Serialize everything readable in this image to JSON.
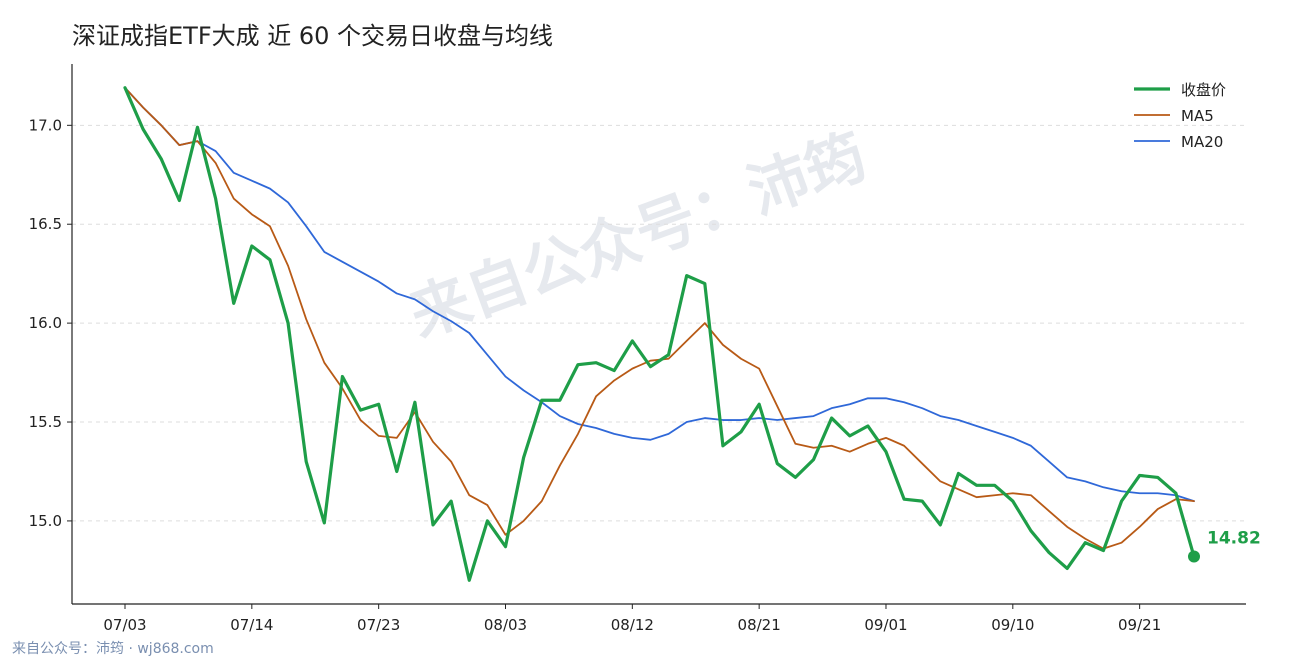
{
  "title": "深证成指ETF大成 近 60 个交易日收盘与均线",
  "watermark": "来自公众号：沛筠",
  "footer": "来自公众号：沛筠 · wj868.com",
  "end_label": "14.82",
  "colors": {
    "close": "#1e9e48",
    "ma5": "#b85a16",
    "ma20": "#2f68d8",
    "axis": "#222222",
    "grid": "#dddddd"
  },
  "chart_data": {
    "type": "line",
    "title": "深证成指ETF大成 近 60 个交易日收盘与均线",
    "xlabel": "",
    "ylabel": "",
    "ylim": [
      14.58,
      17.31
    ],
    "y_ticks": [
      15.0,
      15.5,
      16.0,
      16.5,
      17.0
    ],
    "x_tick_labels": [
      "07/03",
      "07/14",
      "07/23",
      "08/03",
      "08/12",
      "08/21",
      "09/01",
      "09/10",
      "09/21"
    ],
    "x_tick_positions": [
      0,
      7,
      14,
      21,
      28,
      35,
      42,
      49,
      56
    ],
    "grid": "horizontal-dashed",
    "legend_position": "top-right",
    "series": [
      {
        "name": "收盘价",
        "values": [
          17.19,
          16.98,
          16.83,
          16.62,
          16.99,
          16.63,
          16.1,
          16.39,
          16.32,
          16.0,
          15.3,
          14.99,
          15.73,
          15.56,
          15.59,
          15.25,
          15.6,
          14.98,
          15.1,
          14.7,
          15.0,
          14.87,
          15.32,
          15.61,
          15.61,
          15.79,
          15.8,
          15.76,
          15.91,
          15.78,
          15.84,
          16.24,
          16.2,
          15.38,
          15.45,
          15.59,
          15.29,
          15.22,
          15.31,
          15.52,
          15.43,
          15.48,
          15.35,
          15.11,
          15.1,
          14.98,
          15.24,
          15.18,
          15.18,
          15.1,
          14.95,
          14.84,
          14.76,
          14.89,
          14.85,
          15.1,
          15.23,
          15.22,
          15.14,
          14.82
        ]
      },
      {
        "name": "MA5",
        "values": [
          17.19,
          17.09,
          17.0,
          16.9,
          16.92,
          16.81,
          16.63,
          16.55,
          16.49,
          16.29,
          16.02,
          15.8,
          15.67,
          15.51,
          15.43,
          15.42,
          15.55,
          15.4,
          15.3,
          15.13,
          15.08,
          14.93,
          15.0,
          15.1,
          15.28,
          15.44,
          15.63,
          15.71,
          15.77,
          15.81,
          15.82,
          15.91,
          16.0,
          15.89,
          15.82,
          15.77,
          15.58,
          15.39,
          15.37,
          15.38,
          15.35,
          15.39,
          15.42,
          15.38,
          15.29,
          15.2,
          15.16,
          15.12,
          15.13,
          15.14,
          15.13,
          15.05,
          14.97,
          14.91,
          14.86,
          14.89,
          14.97,
          15.06,
          15.11,
          15.1
        ]
      },
      {
        "name": "MA20",
        "values": [
          17.19,
          17.09,
          17.0,
          16.9,
          16.92,
          16.87,
          16.76,
          16.72,
          16.68,
          16.61,
          16.49,
          16.36,
          16.31,
          16.26,
          16.21,
          16.15,
          16.12,
          16.06,
          16.01,
          15.95,
          15.84,
          15.73,
          15.66,
          15.6,
          15.53,
          15.49,
          15.47,
          15.44,
          15.42,
          15.41,
          15.44,
          15.5,
          15.52,
          15.51,
          15.51,
          15.52,
          15.51,
          15.52,
          15.53,
          15.57,
          15.59,
          15.62,
          15.62,
          15.6,
          15.57,
          15.53,
          15.51,
          15.48,
          15.45,
          15.42,
          15.38,
          15.3,
          15.22,
          15.2,
          15.17,
          15.15,
          15.14,
          15.14,
          15.13,
          15.1
        ]
      }
    ]
  }
}
